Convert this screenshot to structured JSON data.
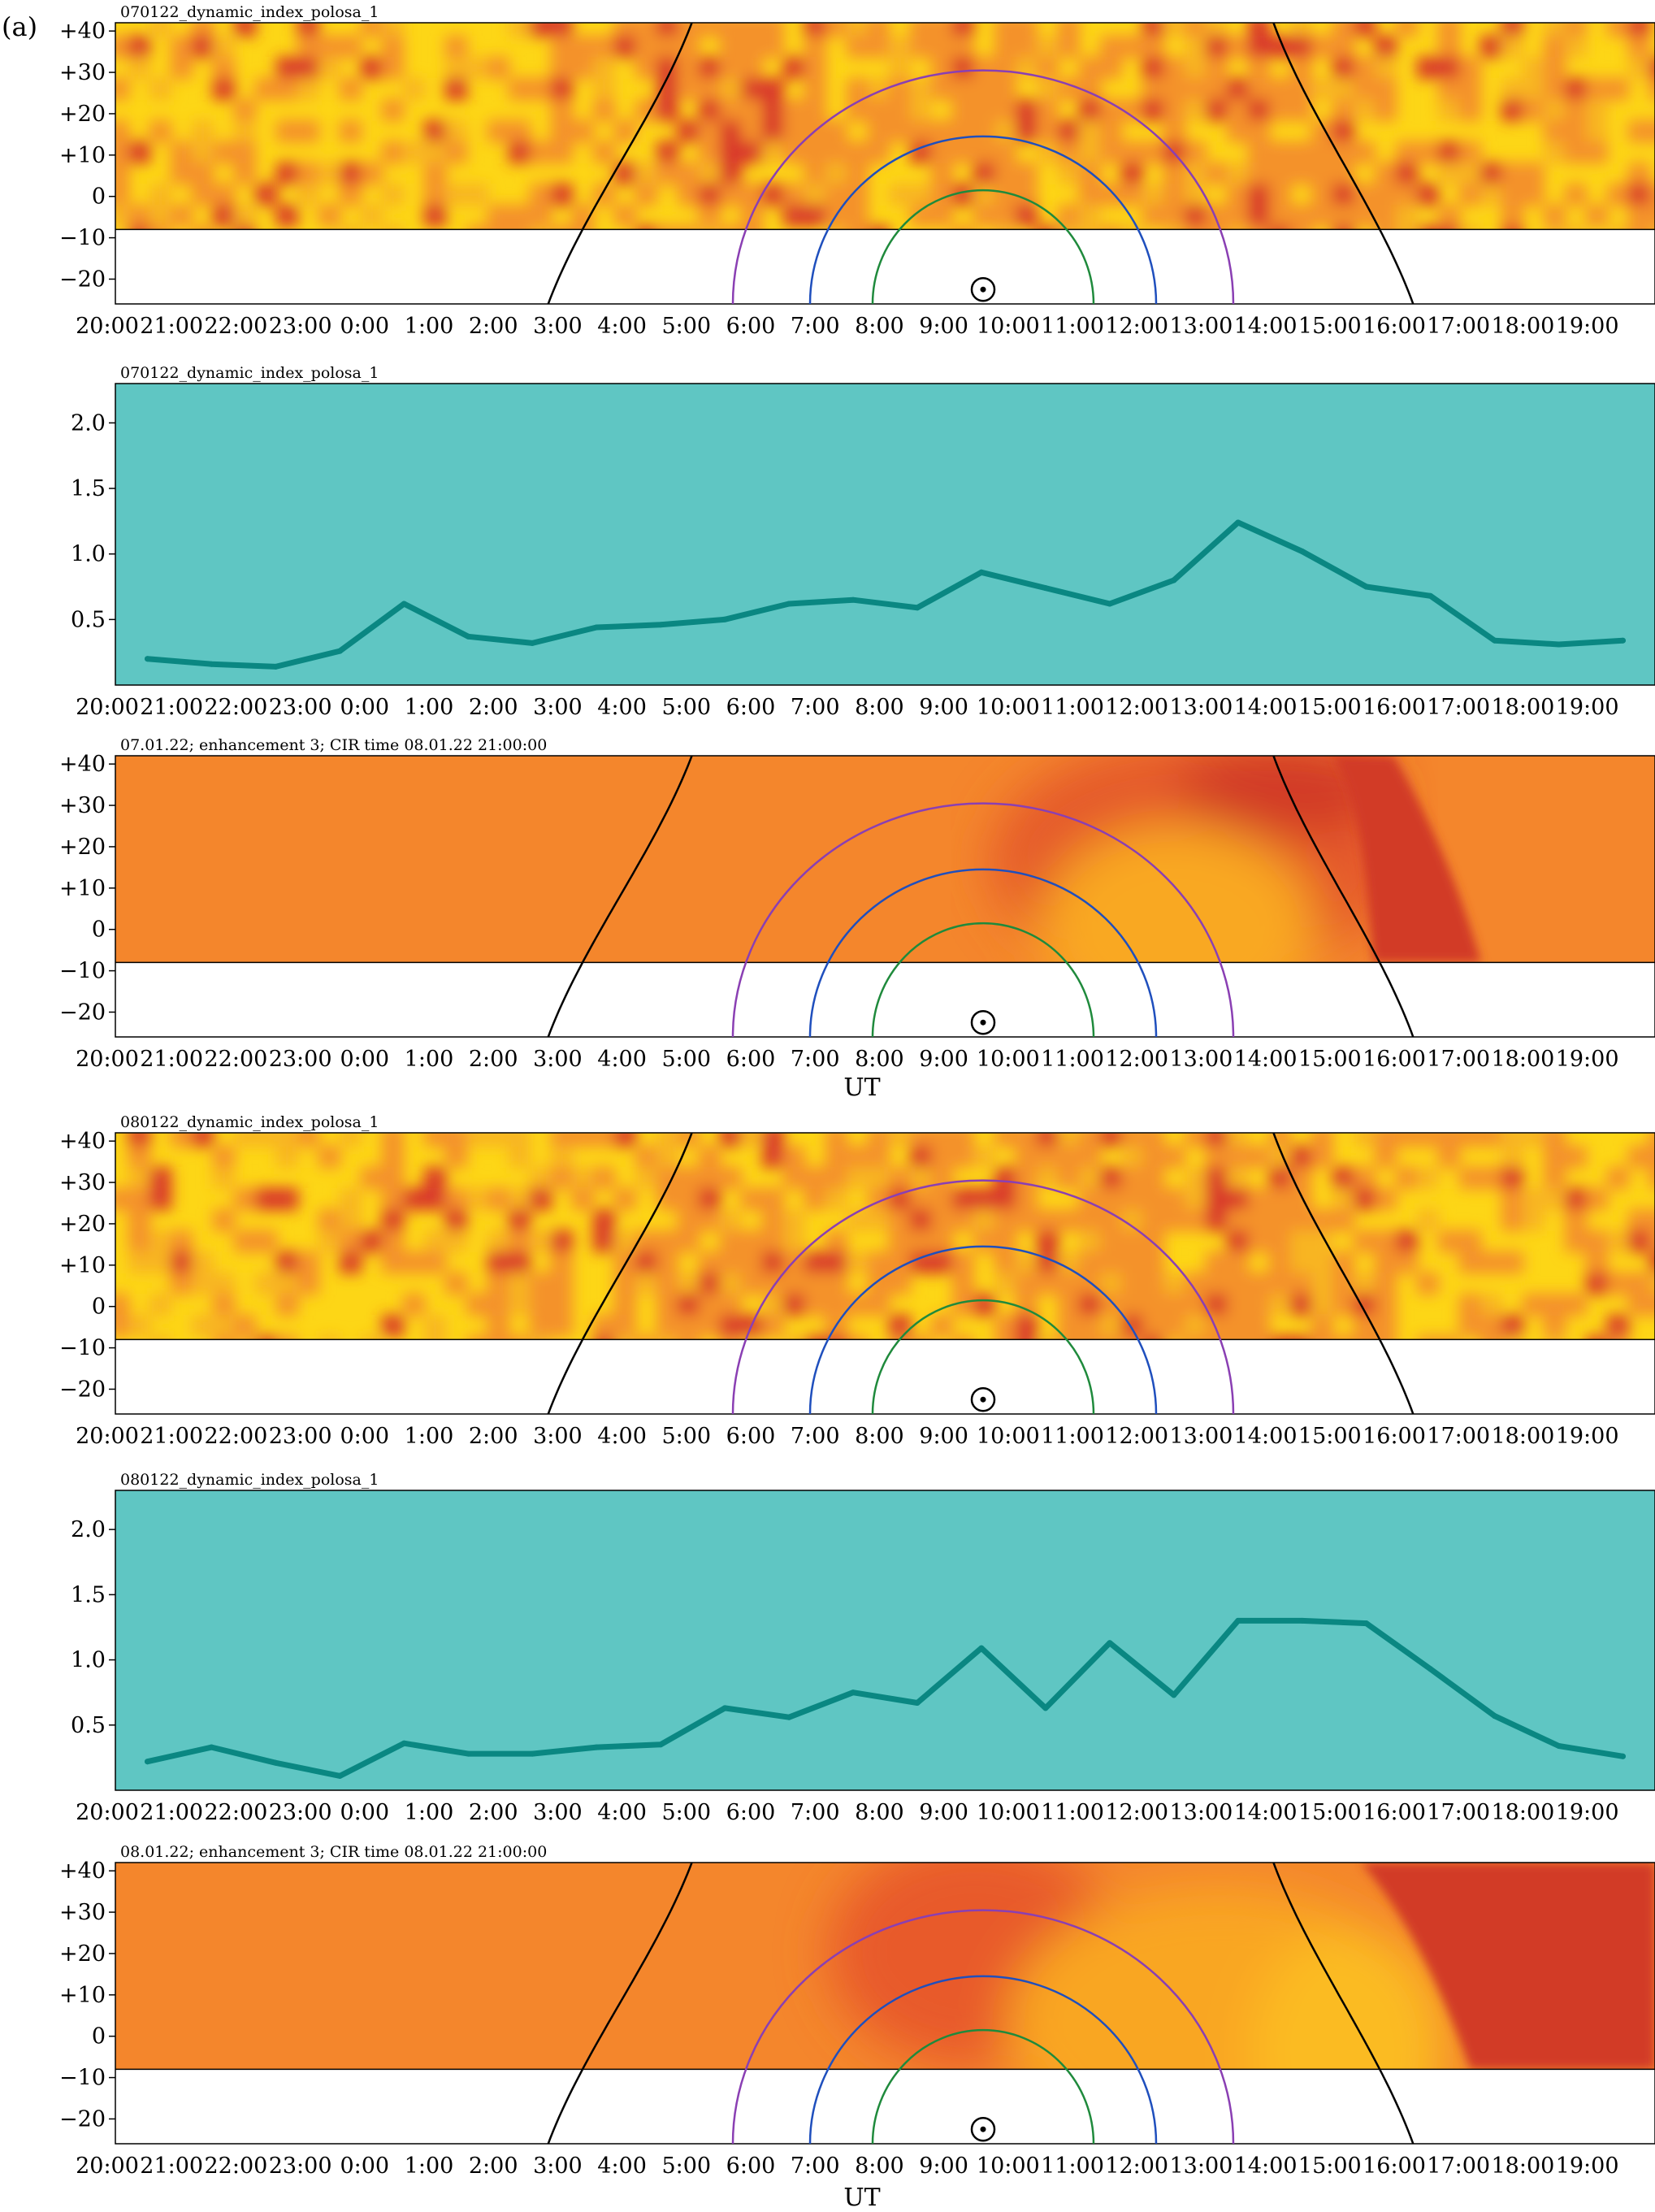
{
  "figure": {
    "label": "(a)",
    "xlabel": "UT"
  },
  "colors": {
    "yellow": "#fdd616",
    "orange": "#f4862c",
    "red": "#d9382a",
    "dark_red": "#d23a28",
    "teal_bg": "#5fc6c3",
    "teal_line": "#0a8782",
    "arc_outer": "#8a3fb3",
    "arc_middle": "#1f4fbd",
    "arc_inner": "#1f8a3c",
    "terminator": "#000000"
  },
  "chart_data": [
    {
      "type": "heatmap",
      "title": "070122_dynamic_index_polosa_1",
      "x_ticks": [
        "20:00",
        "21:00",
        "22:00",
        "23:00",
        "0:00",
        "1:00",
        "2:00",
        "3:00",
        "4:00",
        "5:00",
        "6:00",
        "7:00",
        "8:00",
        "9:00",
        "10:00",
        "11:00",
        "12:00",
        "13:00",
        "14:00",
        "15:00",
        "16:00",
        "17:00",
        "18:00",
        "19:00"
      ],
      "y_ticks": [
        "+40",
        "+30",
        "+20",
        "+10",
        "0",
        "−10",
        "−20"
      ],
      "ylim": [
        -26,
        42
      ],
      "data_bottom": -8,
      "pattern": "noisy",
      "sun_marker": {
        "time": 13.4,
        "lat": -22.5
      }
    },
    {
      "type": "line",
      "title": "070122_dynamic_index_polosa_1",
      "x_ticks": [
        "20:00",
        "21:00",
        "22:00",
        "23:00",
        "0:00",
        "1:00",
        "2:00",
        "3:00",
        "4:00",
        "5:00",
        "6:00",
        "7:00",
        "8:00",
        "9:00",
        "10:00",
        "11:00",
        "12:00",
        "13:00",
        "14:00",
        "15:00",
        "16:00",
        "17:00",
        "18:00",
        "19:00"
      ],
      "y_ticks": [
        "2.0",
        "1.5",
        "1.0",
        "0.5"
      ],
      "ylim": [
        0,
        2.3
      ],
      "x": [
        0.5,
        1.5,
        2.5,
        3.5,
        4.5,
        5.5,
        6.5,
        7.5,
        8.5,
        9.5,
        10.5,
        11.5,
        12.5,
        13.5,
        14.5,
        15.5,
        16.5,
        17.5,
        18.5,
        19.5,
        20.5,
        21.5,
        22.5,
        23.5
      ],
      "values": [
        0.2,
        0.16,
        0.14,
        0.26,
        0.62,
        0.37,
        0.32,
        0.44,
        0.46,
        0.5,
        0.62,
        0.65,
        0.59,
        0.86,
        0.74,
        0.62,
        0.8,
        1.24,
        1.02,
        0.75,
        0.68,
        0.34,
        0.31,
        0.34
      ]
    },
    {
      "type": "heatmap",
      "title": "07.01.22; enhancement 3; CIR time 08.01.22 21:00:00",
      "x_ticks": [
        "20:00",
        "21:00",
        "22:00",
        "23:00",
        "0:00",
        "1:00",
        "2:00",
        "3:00",
        "4:00",
        "5:00",
        "6:00",
        "7:00",
        "8:00",
        "9:00",
        "10:00",
        "11:00",
        "12:00",
        "13:00",
        "14:00",
        "15:00",
        "16:00",
        "17:00",
        "18:00",
        "19:00"
      ],
      "y_ticks": [
        "+40",
        "+30",
        "+20",
        "+10",
        "0",
        "−10",
        "−20"
      ],
      "ylim": [
        -26,
        42
      ],
      "data_bottom": -8,
      "pattern": "model_a",
      "sun_marker": {
        "time": 13.4,
        "lat": -22.5
      }
    },
    {
      "type": "heatmap",
      "title": "080122_dynamic_index_polosa_1",
      "x_ticks": [
        "20:00",
        "21:00",
        "22:00",
        "23:00",
        "0:00",
        "1:00",
        "2:00",
        "3:00",
        "4:00",
        "5:00",
        "6:00",
        "7:00",
        "8:00",
        "9:00",
        "10:00",
        "11:00",
        "12:00",
        "13:00",
        "14:00",
        "15:00",
        "16:00",
        "17:00",
        "18:00",
        "19:00"
      ],
      "y_ticks": [
        "+40",
        "+30",
        "+20",
        "+10",
        "0",
        "−10",
        "−20"
      ],
      "ylim": [
        -26,
        42
      ],
      "data_bottom": -8,
      "pattern": "noisy",
      "sun_marker": {
        "time": 13.4,
        "lat": -22.5
      }
    },
    {
      "type": "line",
      "title": "080122_dynamic_index_polosa_1",
      "x_ticks": [
        "20:00",
        "21:00",
        "22:00",
        "23:00",
        "0:00",
        "1:00",
        "2:00",
        "3:00",
        "4:00",
        "5:00",
        "6:00",
        "7:00",
        "8:00",
        "9:00",
        "10:00",
        "11:00",
        "12:00",
        "13:00",
        "14:00",
        "15:00",
        "16:00",
        "17:00",
        "18:00",
        "19:00"
      ],
      "y_ticks": [
        "2.0",
        "1.5",
        "1.0",
        "0.5"
      ],
      "ylim": [
        0,
        2.3
      ],
      "x": [
        0.5,
        1.5,
        2.5,
        3.5,
        4.5,
        5.5,
        6.5,
        7.5,
        8.5,
        9.5,
        10.5,
        11.5,
        12.5,
        13.5,
        14.5,
        15.5,
        16.5,
        17.5,
        18.5,
        19.5,
        20.5,
        21.5,
        22.5,
        23.5
      ],
      "values": [
        0.22,
        0.33,
        0.21,
        0.11,
        0.36,
        0.28,
        0.28,
        0.33,
        0.35,
        0.63,
        0.56,
        0.75,
        0.67,
        1.09,
        0.63,
        1.13,
        0.73,
        1.3,
        1.3,
        1.28,
        0.93,
        0.57,
        0.34,
        0.26
      ]
    },
    {
      "type": "heatmap",
      "title": "08.01.22; enhancement 3; CIR time 08.01.22 21:00:00",
      "x_ticks": [
        "20:00",
        "21:00",
        "22:00",
        "23:00",
        "0:00",
        "1:00",
        "2:00",
        "3:00",
        "4:00",
        "5:00",
        "6:00",
        "7:00",
        "8:00",
        "9:00",
        "10:00",
        "11:00",
        "12:00",
        "13:00",
        "14:00",
        "15:00",
        "16:00",
        "17:00",
        "18:00",
        "19:00"
      ],
      "y_ticks": [
        "+40",
        "+30",
        "+20",
        "+10",
        "0",
        "−10",
        "−20"
      ],
      "ylim": [
        -26,
        42
      ],
      "data_bottom": -8,
      "pattern": "model_b",
      "sun_marker": {
        "time": 13.4,
        "lat": -22.5
      }
    }
  ]
}
